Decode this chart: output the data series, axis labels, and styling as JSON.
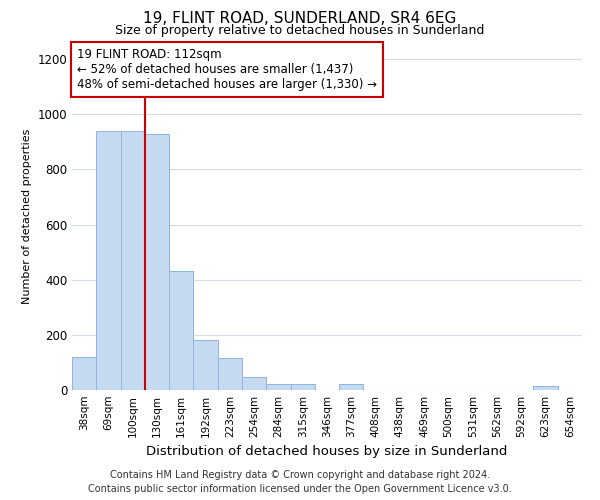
{
  "title1": "19, FLINT ROAD, SUNDERLAND, SR4 6EG",
  "title2": "Size of property relative to detached houses in Sunderland",
  "xlabel": "Distribution of detached houses by size in Sunderland",
  "ylabel": "Number of detached properties",
  "categories": [
    "38sqm",
    "69sqm",
    "100sqm",
    "130sqm",
    "161sqm",
    "192sqm",
    "223sqm",
    "254sqm",
    "284sqm",
    "315sqm",
    "346sqm",
    "377sqm",
    "408sqm",
    "438sqm",
    "469sqm",
    "500sqm",
    "531sqm",
    "562sqm",
    "592sqm",
    "623sqm",
    "654sqm"
  ],
  "values": [
    120,
    940,
    940,
    930,
    430,
    180,
    115,
    48,
    20,
    20,
    0,
    20,
    0,
    0,
    0,
    0,
    0,
    0,
    0,
    15,
    0
  ],
  "bar_color": "#c5d9f1",
  "bar_edge_color": "#8db4e2",
  "highlight_index": 2,
  "vline_color": "#cc0000",
  "ylim": [
    0,
    1260
  ],
  "yticks": [
    0,
    200,
    400,
    600,
    800,
    1000,
    1200
  ],
  "annotation_text": "19 FLINT ROAD: 112sqm\n← 52% of detached houses are smaller (1,437)\n48% of semi-detached houses are larger (1,330) →",
  "annotation_box_color": "#ffffff",
  "annotation_box_edge_color": "#cc0000",
  "footer_line1": "Contains HM Land Registry data © Crown copyright and database right 2024.",
  "footer_line2": "Contains public sector information licensed under the Open Government Licence v3.0.",
  "bg_color": "#ffffff",
  "grid_color": "#d4dce8"
}
